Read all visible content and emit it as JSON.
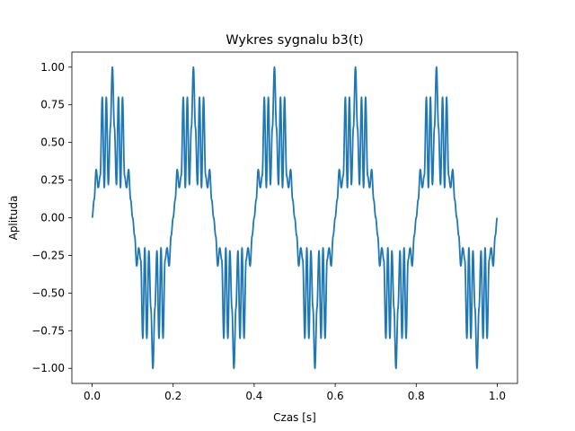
{
  "chart_data": {
    "type": "line",
    "title": "Wykres sygnalu b3(t)",
    "xlabel": "Czas [s]",
    "ylabel": "Aplituda",
    "xlim": [
      -0.05,
      1.05
    ],
    "ylim": [
      -1.1,
      1.1
    ],
    "x_ticks": [
      0.0,
      0.2,
      0.4,
      0.6,
      0.8,
      1.0
    ],
    "x_tick_labels": [
      "0.0",
      "0.2",
      "0.4",
      "0.6",
      "0.8",
      "1.0"
    ],
    "y_ticks": [
      -1.0,
      -0.75,
      -0.5,
      -0.25,
      0.0,
      0.25,
      0.5,
      0.75,
      1.0
    ],
    "y_tick_labels": [
      "−1.00",
      "−0.75",
      "−0.50",
      "−0.25",
      "0.00",
      "0.25",
      "0.50",
      "0.75",
      "1.00"
    ],
    "grid": false,
    "series": [
      {
        "name": "b3(t)",
        "color": "#1f77b4",
        "x_range": [
          0,
          1
        ],
        "fundamental_period": 0.2,
        "formula": "sin(2*pi*5*t) with modulation; characteristic points per period listed below",
        "period_points_x": [
          0,
          0.005,
          0.01,
          0.015,
          0.02,
          0.025,
          0.03,
          0.035,
          0.04,
          0.045,
          0.05,
          0.055,
          0.06,
          0.065,
          0.07,
          0.075,
          0.08,
          0.085,
          0.09,
          0.095,
          0.1
        ],
        "period_points_y": [
          0.0,
          0.12,
          0.32,
          0.2,
          0.28,
          0.8,
          0.2,
          0.8,
          0.22,
          0.6,
          1.0,
          0.6,
          0.22,
          0.8,
          0.2,
          0.8,
          0.28,
          0.2,
          0.32,
          0.12,
          0.0
        ]
      }
    ]
  }
}
